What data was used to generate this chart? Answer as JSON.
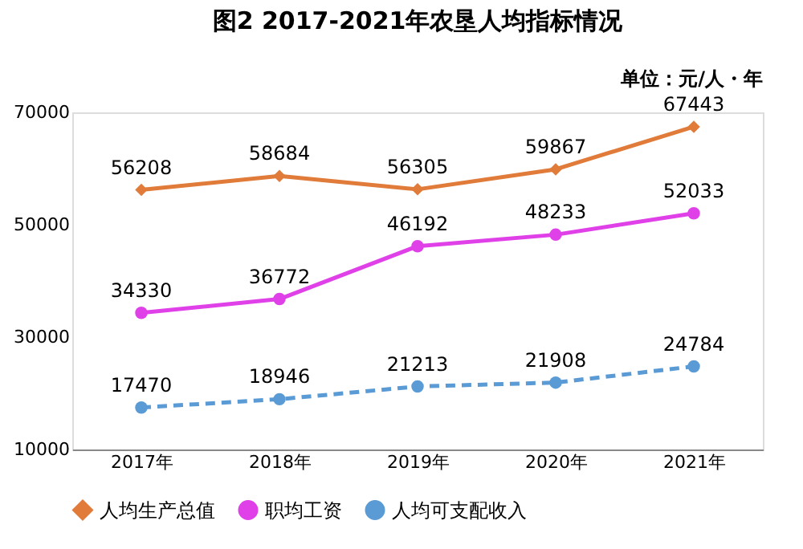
{
  "chart_data": {
    "type": "line",
    "title": "图2 2017-2021年农垦人均指标情况",
    "annotations": [
      "单位：元/人・年"
    ],
    "categories": [
      "2017年",
      "2018年",
      "2019年",
      "2020年",
      "2021年"
    ],
    "series": [
      {
        "name": "人均生产总值",
        "color": "#e07b39",
        "marker": "diamond",
        "line_style": "solid",
        "values": [
          56208,
          58684,
          56305,
          59867,
          67443
        ]
      },
      {
        "name": "职均工资",
        "color": "#e040e8",
        "marker": "circle",
        "line_style": "solid",
        "values": [
          34330,
          36772,
          46192,
          48233,
          52033
        ]
      },
      {
        "name": "人均可支配收入",
        "color": "#5b9bd5",
        "marker": "circle",
        "line_style": "dashed",
        "values": [
          17470,
          18946,
          21213,
          21908,
          24784
        ]
      }
    ],
    "ylim": [
      10000,
      70000
    ],
    "yticks": [
      10000,
      30000,
      50000,
      70000
    ],
    "grid": false,
    "legend": "bottom",
    "data_labels": true
  }
}
